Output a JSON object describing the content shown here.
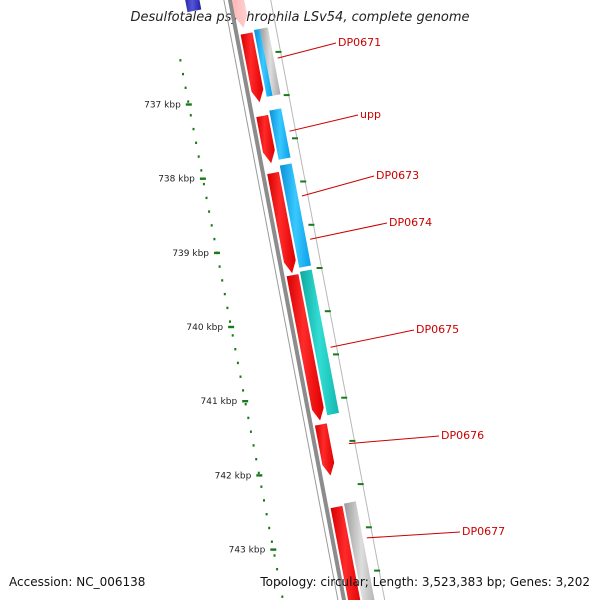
{
  "title": "Desulfotalea psychrophila LSv54, complete genome",
  "footer": {
    "accession": "Accession: NC_006138",
    "summary": "Topology: circular; Length: 3,523,383 bp; Genes: 3,202"
  },
  "ruler": {
    "ticks": [
      {
        "label": "737 kbp"
      },
      {
        "label": "738 kbp"
      },
      {
        "label": "739 kbp"
      },
      {
        "label": "740 kbp"
      },
      {
        "label": "741 kbp"
      },
      {
        "label": "742 kbp"
      },
      {
        "label": "743 kbp"
      }
    ]
  },
  "genes": [
    {
      "label": "DP0671"
    },
    {
      "label": "upp"
    },
    {
      "label": "DP0673"
    },
    {
      "label": "DP0674"
    },
    {
      "label": "DP0675"
    },
    {
      "label": "DP0676"
    },
    {
      "label": "DP0677"
    }
  ],
  "colors": {
    "backbone": "#8c8c8c",
    "forward_strand": "#ff0000",
    "cyan": "#19b5f0",
    "teal": "#1cc8c0",
    "grey": "#b0b0b0",
    "navy": "#2b2bb0",
    "ruler": "#1a7a1a",
    "label": "#cc0000"
  }
}
